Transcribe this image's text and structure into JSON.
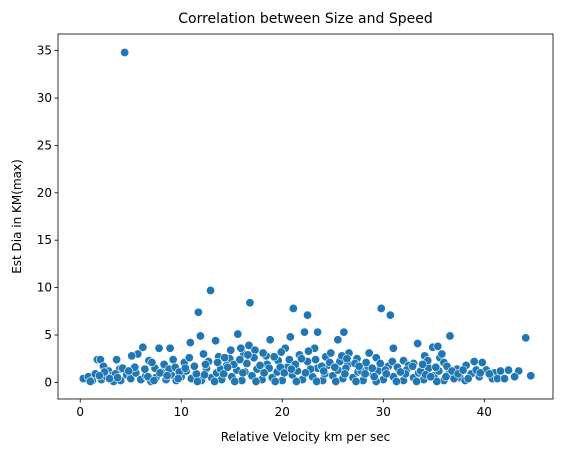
{
  "chart_data": {
    "type": "scatter",
    "title": "Correlation between Size and Speed",
    "xlabel": "Relative Velocity km per sec",
    "ylabel": "Est Dia in KM(max)",
    "xlim": [
      -2.2,
      46.8
    ],
    "ylim": [
      -1.75,
      36.75
    ],
    "xticks": [
      0,
      10,
      20,
      30,
      40
    ],
    "yticks": [
      0,
      5,
      10,
      15,
      20,
      25,
      30,
      35
    ],
    "grid": false,
    "legend": "none",
    "point_color": "#1f77b4",
    "points": [
      [
        4.4,
        34.8
      ],
      [
        12.9,
        9.7
      ],
      [
        16.8,
        8.4
      ],
      [
        21.1,
        7.8
      ],
      [
        22.5,
        7.1
      ],
      [
        29.8,
        7.8
      ],
      [
        30.7,
        7.1
      ],
      [
        11.7,
        7.4
      ],
      [
        11.9,
        4.9
      ],
      [
        15.6,
        5.1
      ],
      [
        20.8,
        4.8
      ],
      [
        22.2,
        5.3
      ],
      [
        23.5,
        5.3
      ],
      [
        26.1,
        5.3
      ],
      [
        36.6,
        4.9
      ],
      [
        44.1,
        4.7
      ],
      [
        34.9,
        3.7
      ],
      [
        35.4,
        3.8
      ],
      [
        33.4,
        4.1
      ],
      [
        25.5,
        4.5
      ],
      [
        18.8,
        4.5
      ],
      [
        16.7,
        3.9
      ],
      [
        10.9,
        4.2
      ],
      [
        13.4,
        4.4
      ],
      [
        6.2,
        3.7
      ],
      [
        7.8,
        3.6
      ],
      [
        8.9,
        3.6
      ],
      [
        5.7,
        3.0
      ],
      [
        5.1,
        2.8
      ],
      [
        1.7,
        2.4
      ],
      [
        2.0,
        2.4
      ],
      [
        3.6,
        2.4
      ],
      [
        2.3,
        1.7
      ],
      [
        2.8,
        1.2
      ],
      [
        3.1,
        0.7
      ],
      [
        3.9,
        1.4
      ],
      [
        6.8,
        2.3
      ],
      [
        7.4,
        1.5
      ],
      [
        9.2,
        2.4
      ],
      [
        10.3,
        2.1
      ],
      [
        12.2,
        3.0
      ],
      [
        13.7,
        2.7
      ],
      [
        14.8,
        2.5
      ],
      [
        16.2,
        3.0
      ],
      [
        17.3,
        3.4
      ],
      [
        18.4,
        2.8
      ],
      [
        19.6,
        2.3
      ],
      [
        20.3,
        3.6
      ],
      [
        21.7,
        2.9
      ],
      [
        23.2,
        3.6
      ],
      [
        24.3,
        2.7
      ],
      [
        25.7,
        2.2
      ],
      [
        26.6,
        3.1
      ],
      [
        27.4,
        2.5
      ],
      [
        28.6,
        3.1
      ],
      [
        29.3,
        2.6
      ],
      [
        31.0,
        3.6
      ],
      [
        32.0,
        2.3
      ],
      [
        33.0,
        2.0
      ],
      [
        34.1,
        2.8
      ],
      [
        35.6,
        2.6
      ],
      [
        36.0,
        2.1
      ],
      [
        37.3,
        1.4
      ],
      [
        38.2,
        1.8
      ],
      [
        39.0,
        2.2
      ],
      [
        39.8,
        2.1
      ],
      [
        40.2,
        1.3
      ],
      [
        41.0,
        1.0
      ],
      [
        41.6,
        1.2
      ],
      [
        42.4,
        1.3
      ],
      [
        43.4,
        1.2
      ],
      [
        44.6,
        0.7
      ],
      [
        37.6,
        0.5
      ],
      [
        38.7,
        0.9
      ],
      [
        39.5,
        0.6
      ],
      [
        40.8,
        0.4
      ],
      [
        41.3,
        0.4
      ],
      [
        38.1,
        0.2
      ],
      [
        0.3,
        0.4
      ],
      [
        0.8,
        0.6
      ],
      [
        1.2,
        0.2
      ],
      [
        1.5,
        0.9
      ],
      [
        2.1,
        0.3
      ],
      [
        2.6,
        0.6
      ],
      [
        3.3,
        0.1
      ],
      [
        4.0,
        0.2
      ],
      [
        4.6,
        0.8
      ],
      [
        5.0,
        0.4
      ],
      [
        5.5,
        1.0
      ],
      [
        6.0,
        0.3
      ],
      [
        6.5,
        0.7
      ],
      [
        7.0,
        0.1
      ],
      [
        7.5,
        0.5
      ],
      [
        8.0,
        1.1
      ],
      [
        8.5,
        0.3
      ],
      [
        9.0,
        0.8
      ],
      [
        9.5,
        0.2
      ],
      [
        10.0,
        0.6
      ],
      [
        10.5,
        1.2
      ],
      [
        11.0,
        0.4
      ],
      [
        11.5,
        0.9
      ],
      [
        12.0,
        0.2
      ],
      [
        12.5,
        1.5
      ],
      [
        13.0,
        0.5
      ],
      [
        13.5,
        1.0
      ],
      [
        14.0,
        0.3
      ],
      [
        14.5,
        1.8
      ],
      [
        15.0,
        0.6
      ],
      [
        15.5,
        1.3
      ],
      [
        16.0,
        0.2
      ],
      [
        16.5,
        2.0
      ],
      [
        17.0,
        0.7
      ],
      [
        17.5,
        1.4
      ],
      [
        18.0,
        0.3
      ],
      [
        18.5,
        1.9
      ],
      [
        19.0,
        0.5
      ],
      [
        19.5,
        1.1
      ],
      [
        20.0,
        0.2
      ],
      [
        20.5,
        1.6
      ],
      [
        21.0,
        0.8
      ],
      [
        21.5,
        1.2
      ],
      [
        22.0,
        0.3
      ],
      [
        22.5,
        2.2
      ],
      [
        23.0,
        0.6
      ],
      [
        23.5,
        1.5
      ],
      [
        24.0,
        0.2
      ],
      [
        24.5,
        1.8
      ],
      [
        25.0,
        0.7
      ],
      [
        25.5,
        1.3
      ],
      [
        26.0,
        0.4
      ],
      [
        26.5,
        1.9
      ],
      [
        27.0,
        0.5
      ],
      [
        27.5,
        1.1
      ],
      [
        28.0,
        0.2
      ],
      [
        28.5,
        1.6
      ],
      [
        29.0,
        0.8
      ],
      [
        29.5,
        1.2
      ],
      [
        30.0,
        0.3
      ],
      [
        30.5,
        1.7
      ],
      [
        31.0,
        0.6
      ],
      [
        31.5,
        1.4
      ],
      [
        32.0,
        0.2
      ],
      [
        32.5,
        1.8
      ],
      [
        33.0,
        0.5
      ],
      [
        33.5,
        1.0
      ],
      [
        34.0,
        0.3
      ],
      [
        34.5,
        1.5
      ],
      [
        35.0,
        0.7
      ],
      [
        35.5,
        1.2
      ],
      [
        36.0,
        0.2
      ],
      [
        36.5,
        0.9
      ],
      [
        37.0,
        0.4
      ],
      [
        10.8,
        2.6
      ],
      [
        11.3,
        1.7
      ],
      [
        12.7,
        2.2
      ],
      [
        13.9,
        1.4
      ],
      [
        14.3,
        2.6
      ],
      [
        15.2,
        1.9
      ],
      [
        15.8,
        2.4
      ],
      [
        16.3,
        1.1
      ],
      [
        17.2,
        2.6
      ],
      [
        17.8,
        1.8
      ],
      [
        18.7,
        1.5
      ],
      [
        19.2,
        2.7
      ],
      [
        19.8,
        1.6
      ],
      [
        20.7,
        2.4
      ],
      [
        21.3,
        1.9
      ],
      [
        21.9,
        2.5
      ],
      [
        22.8,
        1.4
      ],
      [
        23.3,
        2.4
      ],
      [
        23.9,
        1.7
      ],
      [
        24.7,
        2.1
      ],
      [
        25.2,
        1.6
      ],
      [
        25.9,
        2.8
      ],
      [
        26.3,
        1.5
      ],
      [
        27.2,
        2.0
      ],
      [
        27.8,
        1.2
      ],
      [
        28.3,
        2.1
      ],
      [
        28.9,
        1.5
      ],
      [
        29.7,
        2.0
      ],
      [
        30.2,
        1.3
      ],
      [
        30.9,
        2.2
      ],
      [
        31.4,
        1.6
      ],
      [
        32.3,
        1.3
      ],
      [
        32.9,
        1.7
      ],
      [
        33.7,
        1.2
      ],
      [
        34.4,
        2.3
      ],
      [
        35.2,
        1.6
      ],
      [
        35.8,
        3.0
      ],
      [
        36.3,
        1.7
      ],
      [
        36.8,
        1.2
      ],
      [
        5.4,
        1.6
      ],
      [
        6.4,
        1.4
      ],
      [
        7.1,
        2.1
      ],
      [
        7.9,
        1.0
      ],
      [
        8.3,
        1.9
      ],
      [
        8.8,
        1.4
      ],
      [
        9.4,
        1.6
      ],
      [
        9.8,
        1.1
      ],
      [
        10.4,
        1.5
      ],
      [
        2.4,
        1.1
      ],
      [
        3.5,
        0.9
      ],
      [
        4.2,
        1.5
      ],
      [
        4.8,
        1.2
      ],
      [
        1.0,
        0.1
      ],
      [
        1.9,
        0.7
      ],
      [
        2.9,
        0.4
      ],
      [
        3.7,
        0.5
      ],
      [
        11.6,
        0.1
      ],
      [
        12.3,
        0.8
      ],
      [
        13.3,
        0.1
      ],
      [
        14.2,
        0.9
      ],
      [
        15.3,
        0.1
      ],
      [
        16.1,
        1.0
      ],
      [
        17.4,
        0.1
      ],
      [
        18.2,
        1.0
      ],
      [
        19.3,
        0.1
      ],
      [
        20.2,
        1.0
      ],
      [
        21.4,
        0.1
      ],
      [
        22.3,
        1.0
      ],
      [
        23.4,
        0.1
      ],
      [
        24.2,
        0.9
      ],
      [
        25.3,
        0.1
      ],
      [
        26.2,
        0.9
      ],
      [
        27.3,
        0.1
      ],
      [
        28.2,
        0.9
      ],
      [
        29.3,
        0.1
      ],
      [
        30.3,
        0.9
      ],
      [
        31.3,
        0.1
      ],
      [
        32.2,
        0.9
      ],
      [
        33.3,
        0.1
      ],
      [
        34.2,
        0.8
      ],
      [
        35.3,
        0.1
      ],
      [
        36.2,
        0.6
      ],
      [
        37.4,
        0.9
      ],
      [
        38.4,
        0.4
      ],
      [
        39.2,
        1.3
      ],
      [
        40.5,
        0.9
      ],
      [
        42.0,
        0.4
      ],
      [
        43.0,
        0.6
      ],
      [
        14.9,
        3.4
      ],
      [
        15.9,
        3.6
      ],
      [
        16.6,
        2.9
      ],
      [
        18.1,
        3.1
      ],
      [
        19.9,
        3.2
      ],
      [
        22.6,
        3.3
      ],
      [
        24.8,
        3.1
      ],
      [
        26.4,
        2.5
      ],
      [
        12.4,
        1.9
      ],
      [
        13.6,
        2.1
      ],
      [
        14.6,
        1.6
      ],
      [
        20.9,
        1.4
      ],
      [
        24.1,
        1.2
      ],
      [
        27.6,
        1.7
      ],
      [
        29.1,
        0.6
      ],
      [
        31.7,
        1.1
      ],
      [
        33.9,
        1.9
      ],
      [
        34.7,
        0.6
      ],
      [
        37.9,
        1.3
      ],
      [
        39.6,
        1.0
      ],
      [
        6.7,
        0.6
      ],
      [
        7.3,
        0.2
      ],
      [
        8.6,
        0.7
      ],
      [
        9.7,
        0.4
      ]
    ]
  }
}
